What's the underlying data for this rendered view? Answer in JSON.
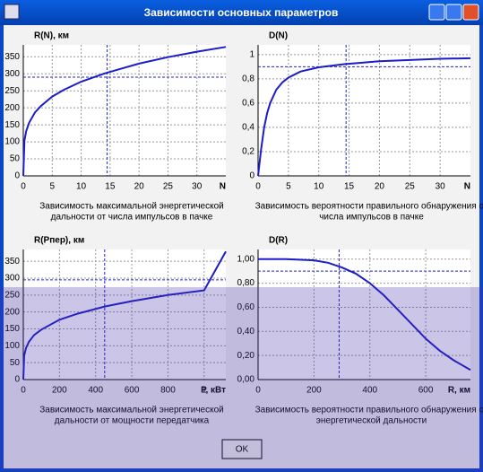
{
  "window": {
    "title": "Зависимости основных параметров"
  },
  "button": {
    "ok": "OK"
  },
  "chart_data": [
    {
      "type": "line",
      "title": "R(N), км",
      "xlabel": "N",
      "caption": [
        "Зависимость максимальной энергетической",
        "дальности от числа импульсов в пачке"
      ],
      "x": [
        0,
        0.2,
        0.5,
        1,
        2,
        3,
        5,
        7,
        10,
        14,
        20,
        25,
        30,
        35
      ],
      "values": [
        0,
        104,
        131,
        156,
        186,
        205,
        233,
        253,
        277,
        301,
        330,
        349,
        365,
        379
      ],
      "color": "#1c1cc8",
      "xlim": [
        0,
        35
      ],
      "ylim": [
        0,
        385
      ],
      "xticks": [
        0,
        5,
        10,
        15,
        20,
        25,
        30
      ],
      "yticks": [
        0,
        50,
        100,
        150,
        200,
        250,
        300,
        350
      ],
      "grid": true,
      "crosshair": {
        "x": 14.5,
        "y": 290
      }
    },
    {
      "type": "line",
      "title": "D(N)",
      "xlabel": "N",
      "caption": [
        "Зависимость вероятности правильного обнаружения от",
        "числа импульсов в пачке"
      ],
      "x": [
        0,
        0.5,
        1,
        1.5,
        2,
        3,
        4,
        5,
        7,
        10,
        14,
        20,
        25,
        30,
        35
      ],
      "values": [
        0,
        0.22,
        0.4,
        0.52,
        0.6,
        0.71,
        0.77,
        0.81,
        0.86,
        0.895,
        0.92,
        0.945,
        0.955,
        0.965,
        0.97
      ],
      "color": "#1c1cc8",
      "xlim": [
        0,
        35
      ],
      "ylim": [
        0,
        1.08
      ],
      "xticks": [
        0,
        5,
        10,
        15,
        20,
        25,
        30
      ],
      "yticks": [
        0,
        {
          "value": 0.2,
          "label": "0,2"
        },
        {
          "value": 0.4,
          "label": "0,4"
        },
        {
          "value": 0.6,
          "label": "0,6"
        },
        {
          "value": 0.8,
          "label": "0,8"
        },
        1
      ],
      "grid": true,
      "crosshair": {
        "x": 14.5,
        "y": 0.9
      }
    },
    {
      "type": "line",
      "title": "R(Pпер), км",
      "xlabel": "P, кВт",
      "caption": [
        "Зависимость максимальной энергетической",
        "дальности от мощности передатчика"
      ],
      "x": [
        0,
        5,
        15,
        30,
        60,
        100,
        200,
        300,
        450,
        600,
        800,
        1000,
        1120
      ],
      "values": [
        0,
        71,
        93,
        111,
        132,
        148,
        177,
        195,
        216,
        232,
        250,
        264,
        379
      ],
      "color": "#1c1cc8",
      "xlim": [
        0,
        1120
      ],
      "ylim": [
        0,
        385
      ],
      "xticks": [
        0,
        200,
        400,
        600,
        800,
        {
          "value": 1000,
          "label": "1"
        }
      ],
      "yticks": [
        0,
        50,
        100,
        150,
        200,
        250,
        300,
        350
      ],
      "grid": true,
      "crosshair": {
        "x": 450,
        "y": 295
      }
    },
    {
      "type": "line",
      "title": "D(R)",
      "xlabel": "R, км",
      "caption": [
        "Зависимость вероятности правильного обнаружения от",
        "энергетической дальности"
      ],
      "x": [
        0,
        100,
        200,
        250,
        300,
        350,
        400,
        450,
        500,
        550,
        600,
        650,
        700,
        760
      ],
      "values": [
        1.0,
        1.0,
        0.99,
        0.97,
        0.93,
        0.88,
        0.8,
        0.7,
        0.58,
        0.46,
        0.34,
        0.24,
        0.16,
        0.08
      ],
      "color": "#1c1cc8",
      "xlim": [
        0,
        760
      ],
      "ylim": [
        0,
        1.08
      ],
      "xticks": [
        0,
        200,
        400,
        600
      ],
      "yticks": [
        {
          "value": 0,
          "label": "0,00"
        },
        {
          "value": 0.2,
          "label": "0,20"
        },
        {
          "value": 0.4,
          "label": "0,40"
        },
        {
          "value": 0.6,
          "label": "0,60"
        },
        {
          "value": 0.8,
          "label": "0,80"
        },
        {
          "value": 1,
          "label": "1,00"
        }
      ],
      "grid": true,
      "crosshair": {
        "x": 290,
        "y": 0.9
      }
    }
  ]
}
